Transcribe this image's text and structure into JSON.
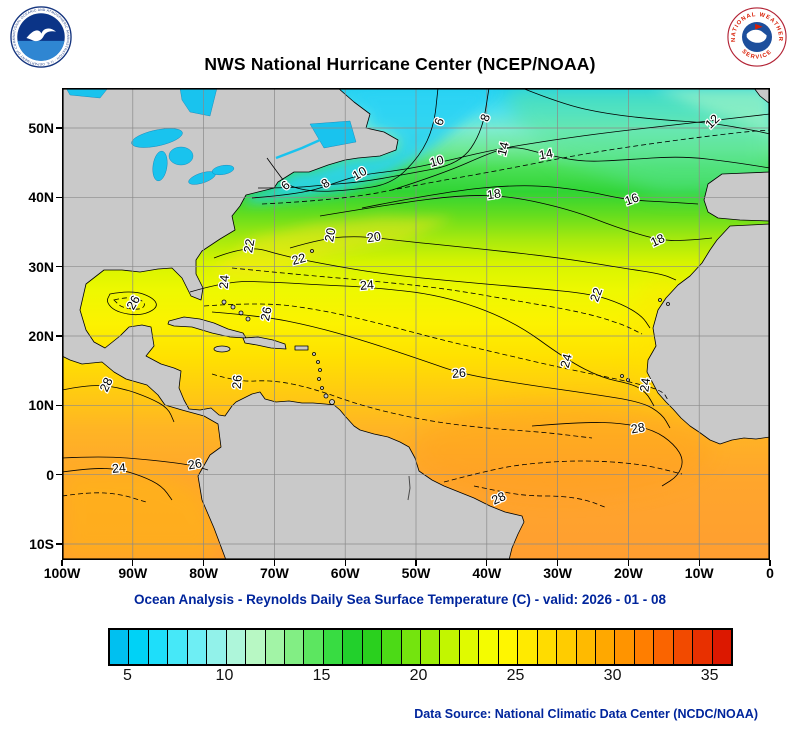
{
  "header": {
    "title": "NWS National Hurricane Center (NCEP/NOAA)"
  },
  "caption": "Ocean Analysis - Reynolds Daily Sea Surface Temperature (C) - valid: 2026 - 01 - 08",
  "footer": {
    "source": "Data Source: National Climatic Data Center (NCDC/NOAA)"
  },
  "logos": {
    "noaa_ring": "NATIONAL OCEANIC AND ATMOSPHERIC ADMINISTRATION - U.S. DEPARTMENT OF COMMERCE",
    "nws_top": "NATIONAL WEATHER",
    "nws_bottom": "SERVICE"
  },
  "chart_data": {
    "type": "heatmap",
    "title": "NWS National Hurricane Center (NCEP/NOAA)",
    "subtitle": "Ocean Analysis - Reynolds Daily Sea Surface Temperature (C) - valid: 2026 - 01 - 08",
    "units": "C",
    "valid_date": "2026 - 01 - 08",
    "data_source": "National Climatic Data Center (NCDC/NOAA)",
    "grid": true,
    "x_axis": {
      "ticks": [
        "100W",
        "90W",
        "80W",
        "70W",
        "60W",
        "50W",
        "40W",
        "30W",
        "20W",
        "10W",
        "0"
      ]
    },
    "y_axis": {
      "ticks": [
        "50N",
        "40N",
        "30N",
        "20N",
        "10N",
        "0",
        "10S"
      ]
    },
    "xlim": [
      "100W",
      "0"
    ],
    "ylim": [
      "12S",
      "56N"
    ],
    "land_color": "#c9c9c9",
    "lake_color": "#19c3ee",
    "grid_color": "#8a8a8a",
    "contour_color": "#000000",
    "colorbar": {
      "min": 4,
      "max": 36,
      "tick_values": [
        5,
        10,
        15,
        20,
        25,
        30,
        35
      ],
      "colors": [
        "#00c0f0",
        "#00d2f6",
        "#1edefa",
        "#46e8f8",
        "#6eeef4",
        "#92f2ea",
        "#aef6da",
        "#b8f8c4",
        "#a2f4a6",
        "#82ee84",
        "#5ce660",
        "#38dc42",
        "#22d02c",
        "#2ad01e",
        "#4cda16",
        "#74e40e",
        "#9cee06",
        "#c2f600",
        "#e0fa00",
        "#f4fc00",
        "#fff600",
        "#ffea00",
        "#ffdc00",
        "#ffcc00",
        "#ffba00",
        "#ffa800",
        "#ff9400",
        "#ff7e00",
        "#fa6400",
        "#f24a00",
        "#e83000",
        "#dc1800"
      ]
    },
    "sst_gradient": [
      {
        "off": 0.0,
        "c": "#20d0f2"
      },
      {
        "off": 0.05,
        "c": "#4fe0ee"
      },
      {
        "off": 0.09,
        "c": "#7deccc"
      },
      {
        "off": 0.13,
        "c": "#6fe996"
      },
      {
        "off": 0.17,
        "c": "#4adf55"
      },
      {
        "off": 0.22,
        "c": "#30d434"
      },
      {
        "off": 0.27,
        "c": "#66dd1e"
      },
      {
        "off": 0.32,
        "c": "#a6e90e"
      },
      {
        "off": 0.37,
        "c": "#d6f400"
      },
      {
        "off": 0.43,
        "c": "#eef800"
      },
      {
        "off": 0.5,
        "c": "#fcf200"
      },
      {
        "off": 0.57,
        "c": "#ffe100"
      },
      {
        "off": 0.64,
        "c": "#ffcc10"
      },
      {
        "off": 0.72,
        "c": "#ffb524"
      },
      {
        "off": 0.82,
        "c": "#ffa62c"
      },
      {
        "off": 1.0,
        "c": "#ff9e30"
      }
    ],
    "contour_labels": [
      {
        "text": "6",
        "x": 378,
        "y": 34,
        "rot": -70
      },
      {
        "text": "8",
        "x": 424,
        "y": 30,
        "rot": -70
      },
      {
        "text": "12",
        "x": 651,
        "y": 34,
        "rot": -45
      },
      {
        "text": "14",
        "x": 442,
        "y": 61,
        "rot": -75
      },
      {
        "text": "14",
        "x": 484,
        "y": 67,
        "rot": -10
      },
      {
        "text": "6",
        "x": 224,
        "y": 98,
        "rot": -40
      },
      {
        "text": "8",
        "x": 264,
        "y": 96,
        "rot": -35
      },
      {
        "text": "10",
        "x": 298,
        "y": 86,
        "rot": -30
      },
      {
        "text": "10",
        "x": 375,
        "y": 74,
        "rot": -15
      },
      {
        "text": "18",
        "x": 432,
        "y": 107,
        "rot": -8
      },
      {
        "text": "16",
        "x": 570,
        "y": 112,
        "rot": -20
      },
      {
        "text": "18",
        "x": 596,
        "y": 153,
        "rot": -25
      },
      {
        "text": "20",
        "x": 269,
        "y": 147,
        "rot": -80
      },
      {
        "text": "20",
        "x": 312,
        "y": 150,
        "rot": -8
      },
      {
        "text": "22",
        "x": 188,
        "y": 158,
        "rot": -80
      },
      {
        "text": "22",
        "x": 237,
        "y": 172,
        "rot": -15
      },
      {
        "text": "24",
        "x": 163,
        "y": 194,
        "rot": -85
      },
      {
        "text": "24",
        "x": 305,
        "y": 198,
        "rot": -5
      },
      {
        "text": "22",
        "x": 535,
        "y": 207,
        "rot": -70
      },
      {
        "text": "26",
        "x": 72,
        "y": 215,
        "rot": -60
      },
      {
        "text": "26",
        "x": 205,
        "y": 226,
        "rot": -78
      },
      {
        "text": "26",
        "x": 397,
        "y": 286,
        "rot": -5
      },
      {
        "text": "26",
        "x": 176,
        "y": 294,
        "rot": -85
      },
      {
        "text": "24",
        "x": 505,
        "y": 273,
        "rot": -75
      },
      {
        "text": "24",
        "x": 584,
        "y": 297,
        "rot": -82
      },
      {
        "text": "28",
        "x": 45,
        "y": 297,
        "rot": -65
      },
      {
        "text": "28",
        "x": 576,
        "y": 341,
        "rot": -10
      },
      {
        "text": "24",
        "x": 57,
        "y": 381,
        "rot": -5
      },
      {
        "text": "26",
        "x": 133,
        "y": 377,
        "rot": -10
      },
      {
        "text": "28",
        "x": 437,
        "y": 411,
        "rot": -25
      }
    ],
    "contours": [
      {
        "pts": [
          [
            205,
            70
          ],
          [
            218,
            88
          ],
          [
            226,
            98
          ],
          [
            252,
            104
          ],
          [
            290,
            102
          ],
          [
            330,
            96
          ],
          [
            358,
            68
          ],
          [
            372,
            38
          ],
          [
            376,
            0
          ]
        ],
        "dash": false,
        "closed": false
      },
      {
        "pts": [
          [
            196,
            100
          ],
          [
            230,
            100
          ],
          [
            262,
            97
          ],
          [
            300,
            94
          ],
          [
            345,
            86
          ],
          [
            398,
            76
          ],
          [
            420,
            44
          ],
          [
            427,
            0
          ]
        ],
        "dash": false,
        "closed": false
      },
      {
        "pts": [
          [
            190,
            110
          ],
          [
            240,
            106
          ],
          [
            276,
            94
          ],
          [
            298,
            87
          ],
          [
            340,
            82
          ],
          [
            380,
            74
          ],
          [
            430,
            62
          ],
          [
            490,
            52
          ],
          [
            550,
            44
          ],
          [
            620,
            36
          ],
          [
            708,
            26
          ]
        ],
        "dash": false,
        "closed": false
      },
      {
        "pts": [
          [
            460,
            0
          ],
          [
            500,
            16
          ],
          [
            545,
            26
          ],
          [
            600,
            32
          ],
          [
            650,
            35
          ],
          [
            690,
            42
          ],
          [
            708,
            46
          ]
        ],
        "dash": false,
        "closed": false
      },
      {
        "pts": [
          [
            330,
            102
          ],
          [
            380,
            86
          ],
          [
            430,
            64
          ],
          [
            452,
            58
          ],
          [
            482,
            66
          ],
          [
            520,
            74
          ],
          [
            560,
            72
          ],
          [
            620,
            68
          ],
          [
            670,
            74
          ],
          [
            708,
            80
          ]
        ],
        "dash": false,
        "closed": false
      },
      {
        "pts": [
          [
            300,
            120
          ],
          [
            380,
            104
          ],
          [
            460,
            96
          ],
          [
            520,
            102
          ],
          [
            565,
            112
          ],
          [
            605,
            114
          ],
          [
            636,
            116
          ]
        ],
        "dash": false,
        "closed": false
      },
      {
        "pts": [
          [
            258,
            128
          ],
          [
            330,
            116
          ],
          [
            400,
            107
          ],
          [
            448,
            108
          ],
          [
            510,
            122
          ],
          [
            556,
            140
          ],
          [
            600,
            153
          ],
          [
            630,
            152
          ],
          [
            650,
            150
          ]
        ],
        "dash": false,
        "closed": false
      },
      {
        "pts": [
          [
            228,
            160
          ],
          [
            262,
            150
          ],
          [
            300,
            148
          ],
          [
            340,
            153
          ],
          [
            420,
            161
          ],
          [
            500,
            170
          ],
          [
            560,
            180
          ],
          [
            600,
            186
          ],
          [
            614,
            192
          ]
        ],
        "dash": false,
        "closed": false
      },
      {
        "pts": [
          [
            152,
            170
          ],
          [
            185,
            157
          ],
          [
            222,
            168
          ],
          [
            262,
            176
          ],
          [
            320,
            186
          ],
          [
            400,
            194
          ],
          [
            470,
            200
          ],
          [
            530,
            206
          ],
          [
            560,
            216
          ],
          [
            580,
            228
          ],
          [
            588,
            240
          ]
        ],
        "dash": false,
        "closed": false
      },
      {
        "pts": [
          [
            128,
            204
          ],
          [
            165,
            193
          ],
          [
            210,
            194
          ],
          [
            260,
            197
          ],
          [
            305,
            199
          ],
          [
            380,
            207
          ],
          [
            450,
            232
          ],
          [
            505,
            272
          ],
          [
            540,
            290
          ],
          [
            570,
            296
          ],
          [
            584,
            304
          ],
          [
            592,
            318
          ]
        ],
        "dash": false,
        "closed": false
      },
      {
        "pts": [
          [
            150,
            224
          ],
          [
            200,
            228
          ],
          [
            250,
            238
          ],
          [
            300,
            252
          ],
          [
            360,
            272
          ],
          [
            400,
            286
          ],
          [
            460,
            296
          ],
          [
            530,
            306
          ],
          [
            580,
            314
          ],
          [
            600,
            326
          ],
          [
            608,
            340
          ]
        ],
        "dash": false,
        "closed": false
      },
      {
        "pts": [
          [
            48,
            206
          ],
          [
            70,
            202
          ],
          [
            92,
            210
          ],
          [
            96,
            220
          ],
          [
            78,
            228
          ],
          [
            54,
            224
          ],
          [
            44,
            214
          ]
        ],
        "dash": false,
        "closed": true
      },
      {
        "pts": [
          [
            52,
            212
          ],
          [
            68,
            208
          ],
          [
            84,
            214
          ],
          [
            80,
            222
          ],
          [
            60,
            220
          ]
        ],
        "dash": true,
        "closed": true
      },
      {
        "pts": [
          [
            470,
            338
          ],
          [
            520,
            334
          ],
          [
            560,
            335
          ],
          [
            592,
            342
          ],
          [
            612,
            356
          ],
          [
            622,
            372
          ],
          [
            616,
            388
          ],
          [
            600,
            398
          ]
        ],
        "dash": false,
        "closed": false
      },
      {
        "pts": [
          [
            412,
            398
          ],
          [
            445,
            405
          ],
          [
            470,
            408
          ],
          [
            500,
            408
          ],
          [
            525,
            412
          ],
          [
            545,
            420
          ]
        ],
        "dash": true,
        "closed": false
      },
      {
        "pts": [
          [
            0,
            302
          ],
          [
            30,
            296
          ],
          [
            60,
            300
          ],
          [
            88,
            310
          ],
          [
            106,
            320
          ],
          [
            112,
            334
          ]
        ],
        "dash": false,
        "closed": false
      },
      {
        "pts": [
          [
            0,
            370
          ],
          [
            40,
            368
          ],
          [
            90,
            372
          ],
          [
            130,
            377
          ],
          [
            146,
            382
          ]
        ],
        "dash": false,
        "closed": false
      },
      {
        "pts": [
          [
            0,
            384
          ],
          [
            30,
            380
          ],
          [
            56,
            381
          ],
          [
            80,
            388
          ],
          [
            100,
            398
          ],
          [
            110,
            412
          ]
        ],
        "dash": false,
        "closed": false
      },
      {
        "pts": [
          [
            0,
            408
          ],
          [
            28,
            404
          ],
          [
            58,
            406
          ],
          [
            84,
            414
          ]
        ],
        "dash": true,
        "closed": false
      },
      {
        "pts": [
          [
            142,
            218
          ],
          [
            200,
            214
          ],
          [
            260,
            222
          ],
          [
            320,
            236
          ],
          [
            380,
            252
          ],
          [
            440,
            266
          ],
          [
            500,
            280
          ],
          [
            560,
            292
          ],
          [
            600,
            302
          ],
          [
            606,
            312
          ]
        ],
        "dash": true,
        "closed": false
      },
      {
        "pts": [
          [
            150,
            286
          ],
          [
            176,
            294
          ],
          [
            210,
            292
          ],
          [
            250,
            300
          ],
          [
            300,
            318
          ],
          [
            360,
            332
          ],
          [
            420,
            340
          ],
          [
            480,
            344
          ],
          [
            530,
            350
          ]
        ],
        "dash": true,
        "closed": false
      },
      {
        "pts": [
          [
            382,
            394
          ],
          [
            420,
            384
          ],
          [
            460,
            376
          ],
          [
            520,
            372
          ],
          [
            580,
            376
          ],
          [
            620,
            386
          ]
        ],
        "dash": true,
        "closed": false
      },
      {
        "pts": [
          [
            170,
            180
          ],
          [
            230,
            186
          ],
          [
            300,
            192
          ],
          [
            380,
            200
          ],
          [
            450,
            212
          ],
          [
            520,
            224
          ],
          [
            560,
            236
          ],
          [
            580,
            246
          ]
        ],
        "dash": true,
        "closed": false
      },
      {
        "pts": [
          [
            200,
            116
          ],
          [
            280,
            112
          ],
          [
            360,
            96
          ],
          [
            440,
            82
          ],
          [
            520,
            66
          ],
          [
            600,
            54
          ],
          [
            680,
            44
          ],
          [
            708,
            42
          ]
        ],
        "dash": true,
        "closed": false
      }
    ]
  }
}
